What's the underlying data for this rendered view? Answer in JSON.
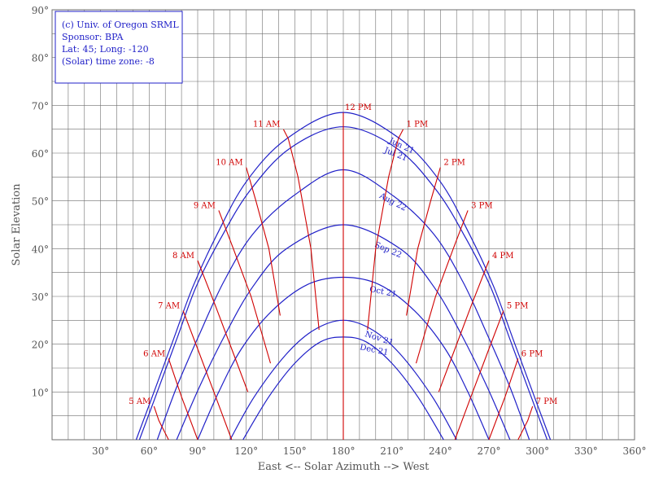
{
  "chart_data": {
    "type": "line",
    "title": "",
    "xlabel": "East <-- Solar Azimuth --> West",
    "ylabel": "Solar Elevation",
    "xlim": [
      0,
      360
    ],
    "ylim": [
      0,
      90
    ],
    "x_ticks": [
      {
        "value": 30,
        "label": "30°"
      },
      {
        "value": 60,
        "label": "60°"
      },
      {
        "value": 90,
        "label": "90°"
      },
      {
        "value": 120,
        "label": "120°"
      },
      {
        "value": 150,
        "label": "150°"
      },
      {
        "value": 180,
        "label": "180°"
      },
      {
        "value": 210,
        "label": "210°"
      },
      {
        "value": 240,
        "label": "240°"
      },
      {
        "value": 270,
        "label": "270°"
      },
      {
        "value": 300,
        "label": "300°"
      },
      {
        "value": 330,
        "label": "330°"
      },
      {
        "value": 360,
        "label": "360°"
      }
    ],
    "y_ticks": [
      {
        "value": 10,
        "label": "10°"
      },
      {
        "value": 20,
        "label": "20°"
      },
      {
        "value": 30,
        "label": "30°"
      },
      {
        "value": 40,
        "label": "40°"
      },
      {
        "value": 50,
        "label": "50°"
      },
      {
        "value": 60,
        "label": "60°"
      },
      {
        "value": 70,
        "label": "70°"
      },
      {
        "value": 80,
        "label": "80°"
      },
      {
        "value": 90,
        "label": "90°"
      }
    ],
    "x_grid_step": 10,
    "y_grid_step": 5,
    "grid": true,
    "info_box": {
      "lines": [
        "(c) Univ. of Oregon SRML",
        "Sponsor: BPA",
        "Lat: 45; Long: -120",
        "(Solar) time zone: -8"
      ],
      "position": "top-left"
    },
    "colors": {
      "date_curves": "#2020c8",
      "hour_lines": "#d00000",
      "grid": "#6e6e6e",
      "text": "#555555"
    },
    "date_curves": [
      {
        "label": "Jun 21",
        "x": [
          52,
          63,
          75,
          87,
          102,
          120,
          145,
          180,
          215,
          240,
          258,
          273,
          285,
          297,
          308
        ],
        "y": [
          0,
          10,
          21,
          32,
          43,
          54,
          63,
          68.5,
          63,
          54,
          43,
          32,
          21,
          10,
          0
        ]
      },
      {
        "label": "Jul 21",
        "x": [
          54,
          65,
          77,
          89,
          104,
          122,
          147,
          180,
          213,
          238,
          256,
          271,
          283,
          295,
          306
        ],
        "y": [
          0,
          10,
          21,
          32,
          42,
          52,
          61,
          65.5,
          61,
          52,
          42,
          32,
          21,
          10,
          0
        ]
      },
      {
        "label": "Aug 22",
        "x": [
          65,
          77,
          91,
          106,
          124,
          149,
          180,
          211,
          236,
          254,
          269,
          283,
          295
        ],
        "y": [
          0,
          11,
          22,
          33,
          43,
          51,
          56.5,
          51,
          43,
          33,
          22,
          11,
          0
        ]
      },
      {
        "label": "Sep 22",
        "x": [
          77,
          91,
          107,
          124,
          145,
          180,
          215,
          236,
          253,
          269,
          283
        ],
        "y": [
          0,
          11,
          22,
          32,
          40,
          45,
          40,
          32,
          22,
          11,
          0
        ]
      },
      {
        "label": "Oct 21",
        "x": [
          90,
          103,
          117,
          136,
          158,
          180,
          202,
          224,
          243,
          257,
          270
        ],
        "y": [
          0,
          10,
          19,
          27,
          32.5,
          34,
          32.5,
          27,
          19,
          10,
          0
        ]
      },
      {
        "label": "Nov 21",
        "x": [
          110,
          125,
          145,
          162,
          180,
          198,
          215,
          235,
          250
        ],
        "y": [
          0,
          9,
          18,
          23,
          25,
          23,
          18,
          9,
          0
        ]
      },
      {
        "label": "Dec 21",
        "x": [
          118,
          134,
          150,
          166,
          180,
          194,
          210,
          226,
          242
        ],
        "y": [
          0,
          9,
          16,
          20.5,
          21.5,
          20.5,
          16,
          9,
          0
        ]
      }
    ],
    "hour_lines": [
      {
        "label": "5 AM",
        "x": [
          63,
          66,
          72
        ],
        "y": [
          7,
          4,
          0
        ]
      },
      {
        "label": "6 AM",
        "x": [
          72,
          80,
          90
        ],
        "y": [
          17,
          9,
          0
        ]
      },
      {
        "label": "7 AM",
        "x": [
          81,
          90,
          100,
          111
        ],
        "y": [
          27,
          19,
          10,
          0
        ]
      },
      {
        "label": "8 AM",
        "x": [
          90,
          101,
          111,
          121
        ],
        "y": [
          37.5,
          28,
          19,
          10
        ]
      },
      {
        "label": "9 AM",
        "x": [
          103,
          112,
          123,
          135
        ],
        "y": [
          48,
          40,
          30,
          16
        ]
      },
      {
        "label": "10 AM",
        "x": [
          120,
          126,
          134,
          141
        ],
        "y": [
          57,
          50,
          40,
          26
        ]
      },
      {
        "label": "11 AM",
        "x": [
          143,
          146,
          152,
          160,
          165
        ],
        "y": [
          65,
          63,
          55,
          40,
          23
        ]
      },
      {
        "label": "12 PM",
        "x": [
          180,
          180
        ],
        "y": [
          68.5,
          0
        ]
      },
      {
        "label": "1 PM",
        "x": [
          217,
          214,
          208,
          200,
          195
        ],
        "y": [
          65,
          63,
          55,
          40,
          23
        ]
      },
      {
        "label": "2 PM",
        "x": [
          240,
          234,
          226,
          219
        ],
        "y": [
          57,
          50,
          40,
          26
        ]
      },
      {
        "label": "3 PM",
        "x": [
          257,
          248,
          237,
          225
        ],
        "y": [
          48,
          40,
          30,
          16
        ]
      },
      {
        "label": "4 PM",
        "x": [
          270,
          259,
          249,
          239
        ],
        "y": [
          37.5,
          28,
          19,
          10
        ]
      },
      {
        "label": "5 PM",
        "x": [
          279,
          270,
          260,
          249
        ],
        "y": [
          27,
          19,
          10,
          0
        ]
      },
      {
        "label": "6 PM",
        "x": [
          288,
          280,
          270
        ],
        "y": [
          17,
          9,
          0
        ]
      },
      {
        "label": "7 PM",
        "x": [
          297,
          294,
          288
        ],
        "y": [
          7,
          4,
          0
        ]
      }
    ]
  }
}
